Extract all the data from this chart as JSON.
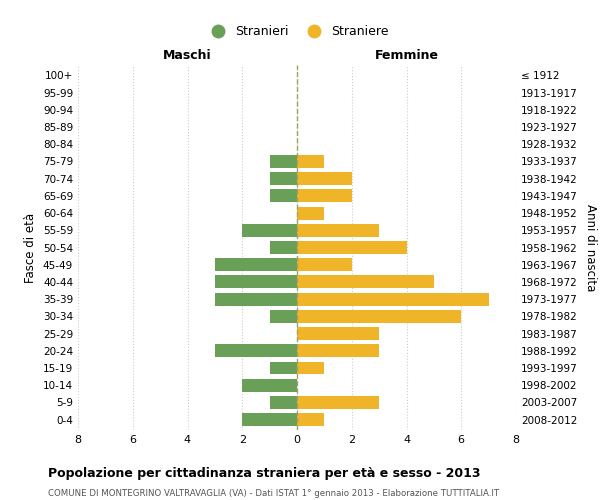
{
  "age_groups": [
    "0-4",
    "5-9",
    "10-14",
    "15-19",
    "20-24",
    "25-29",
    "30-34",
    "35-39",
    "40-44",
    "45-49",
    "50-54",
    "55-59",
    "60-64",
    "65-69",
    "70-74",
    "75-79",
    "80-84",
    "85-89",
    "90-94",
    "95-99",
    "100+"
  ],
  "birth_years": [
    "2008-2012",
    "2003-2007",
    "1998-2002",
    "1993-1997",
    "1988-1992",
    "1983-1987",
    "1978-1982",
    "1973-1977",
    "1968-1972",
    "1963-1967",
    "1958-1962",
    "1953-1957",
    "1948-1952",
    "1943-1947",
    "1938-1942",
    "1933-1937",
    "1928-1932",
    "1923-1927",
    "1918-1922",
    "1913-1917",
    "≤ 1912"
  ],
  "maschi": [
    2,
    1,
    2,
    1,
    3,
    0,
    1,
    3,
    3,
    3,
    1,
    2,
    0,
    1,
    1,
    1,
    0,
    0,
    0,
    0,
    0
  ],
  "femmine": [
    1,
    3,
    0,
    1,
    3,
    3,
    6,
    7,
    5,
    2,
    4,
    3,
    1,
    2,
    2,
    1,
    0,
    0,
    0,
    0,
    0
  ],
  "maschi_color": "#6a9f58",
  "femmine_color": "#f0b429",
  "title": "Popolazione per cittadinanza straniera per età e sesso - 2013",
  "subtitle": "COMUNE DI MONTEGRINO VALTRAVAGLIA (VA) - Dati ISTAT 1° gennaio 2013 - Elaborazione TUTTITALIA.IT",
  "xlabel_left": "Maschi",
  "xlabel_right": "Femmine",
  "ylabel": "Fasce di età",
  "ylabel_right": "Anni di nascita",
  "legend_maschi": "Stranieri",
  "legend_femmine": "Straniere",
  "xlim": 8,
  "bg_color": "#ffffff",
  "grid_color": "#cccccc",
  "dashed_line_color": "#a0a060"
}
